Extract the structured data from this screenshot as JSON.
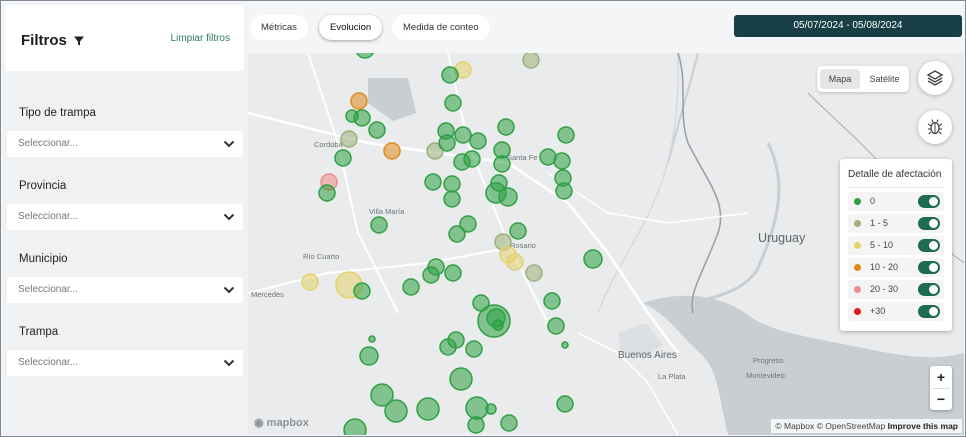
{
  "sidebar": {
    "title": "Filtros",
    "clear_label": "Limpiar filtros",
    "filters": [
      {
        "label": "Tipo de trampa",
        "placeholder": "Seleccionar..."
      },
      {
        "label": "Provincia",
        "placeholder": "Seleccionar..."
      },
      {
        "label": "Municipio",
        "placeholder": "Seleccionar..."
      },
      {
        "label": "Trampa",
        "placeholder": "Seleccionar..."
      }
    ]
  },
  "tabs": [
    {
      "label": "Métricas",
      "active": false
    },
    {
      "label": "Evolucion",
      "active": true
    },
    {
      "label": "Medida de conteo",
      "active": false
    }
  ],
  "date_range": "05/07/2024 - 05/08/2024",
  "map_style": {
    "options": [
      "Mapa",
      "Satélite"
    ],
    "selected": "Mapa"
  },
  "legend": {
    "title": "Detalle de afectación",
    "items": [
      {
        "label": "0",
        "color": "#2e9e3e",
        "enabled": true
      },
      {
        "label": "1 - 5",
        "color": "#9bb07a",
        "enabled": true
      },
      {
        "label": "5 - 10",
        "color": "#e2d26c",
        "enabled": true
      },
      {
        "label": "10 - 20",
        "color": "#e08a1c",
        "enabled": true
      },
      {
        "label": "20 - 30",
        "color": "#ef8b8b",
        "enabled": true
      },
      {
        "label": "+30",
        "color": "#e01b1b",
        "enabled": true
      }
    ]
  },
  "map_labels": {
    "cordoba": "Cordoba",
    "santa_fe": "Santa Fe",
    "villa_maria": "Villa María",
    "rosario": "Rosario",
    "rio_cuarto": "Río Cuarto",
    "mercedes": "Mercedes",
    "uruguay": "Uruguay",
    "buenos_aires": "Buenos Aires",
    "la_plata": "La Plata",
    "progreso": "Progreso",
    "montevideo": "Montevideo"
  },
  "zoom": {
    "in": "+",
    "out": "−"
  },
  "mapbox_logo": "mapbox",
  "attribution": {
    "text": "© Mapbox © OpenStreetMap",
    "link": "Improve this map"
  },
  "colors": {
    "accent_dark": "#173f45",
    "toggle_on": "#1f6b4e",
    "link": "#2e7d5b"
  }
}
